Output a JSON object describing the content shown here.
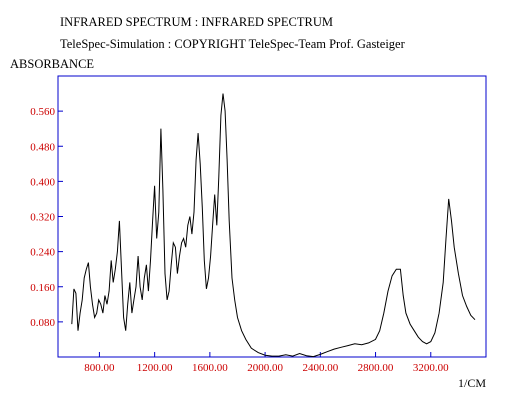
{
  "chart_data": {
    "type": "line",
    "title": "INFRARED SPECTRUM : INFRARED SPECTRUM",
    "subtitle": "TeleSpec-Simulation : COPYRIGHT TeleSpec-Team Prof. Gasteiger",
    "ylabel": "ABSORBANCE",
    "xlabel": "1/CM",
    "xlim": [
      500,
      3600
    ],
    "ylim": [
      0.0,
      0.64
    ],
    "x_ticks": [
      "800.00",
      "1200.00",
      "1600.00",
      "2000.00",
      "2400.00",
      "2800.00",
      "3200.00"
    ],
    "x_tick_values": [
      800,
      1200,
      1600,
      2000,
      2400,
      2800,
      3200
    ],
    "y_ticks": [
      "0.560",
      "0.480",
      "0.400",
      "0.320",
      "0.240",
      "0.160",
      "0.080"
    ],
    "y_tick_values": [
      0.56,
      0.48,
      0.4,
      0.32,
      0.24,
      0.16,
      0.08
    ],
    "grid": false,
    "line_color": "#000000",
    "frame_color": "#0000cc",
    "tick_label_color": "#cc0000",
    "series": [
      {
        "x": [
          600,
          615,
          630,
          645,
          660,
          675,
          690,
          705,
          720,
          735,
          750,
          765,
          780,
          795,
          810,
          825,
          840,
          855,
          870,
          885,
          900,
          915,
          930,
          945,
          960,
          975,
          990,
          1005,
          1020,
          1035,
          1050,
          1065,
          1080,
          1095,
          1110,
          1125,
          1140,
          1155,
          1170,
          1185,
          1200,
          1215,
          1230,
          1245,
          1260,
          1275,
          1290,
          1305,
          1320,
          1335,
          1350,
          1365,
          1380,
          1395,
          1410,
          1425,
          1440,
          1455,
          1470,
          1485,
          1500,
          1515,
          1530,
          1545,
          1560,
          1575,
          1590,
          1605,
          1620,
          1635,
          1650,
          1665,
          1680,
          1695,
          1710,
          1725,
          1740,
          1760,
          1780,
          1800,
          1830,
          1860,
          1900,
          1950,
          2000,
          2050,
          2100,
          2150,
          2200,
          2250,
          2300,
          2350,
          2400,
          2450,
          2500,
          2550,
          2600,
          2650,
          2700,
          2750,
          2800,
          2830,
          2860,
          2890,
          2920,
          2950,
          2980,
          3000,
          3020,
          3050,
          3080,
          3110,
          3140,
          3170,
          3200,
          3230,
          3260,
          3290,
          3310,
          3330,
          3350,
          3370,
          3400,
          3430,
          3460,
          3490,
          3520
        ],
        "y": [
          0.075,
          0.155,
          0.145,
          0.06,
          0.1,
          0.13,
          0.18,
          0.2,
          0.215,
          0.16,
          0.12,
          0.09,
          0.1,
          0.13,
          0.12,
          0.1,
          0.14,
          0.12,
          0.15,
          0.22,
          0.17,
          0.2,
          0.24,
          0.31,
          0.2,
          0.09,
          0.06,
          0.12,
          0.17,
          0.1,
          0.13,
          0.16,
          0.23,
          0.16,
          0.13,
          0.18,
          0.21,
          0.15,
          0.22,
          0.31,
          0.39,
          0.27,
          0.33,
          0.52,
          0.38,
          0.19,
          0.13,
          0.15,
          0.21,
          0.26,
          0.25,
          0.19,
          0.23,
          0.26,
          0.27,
          0.25,
          0.3,
          0.32,
          0.28,
          0.33,
          0.45,
          0.51,
          0.44,
          0.34,
          0.22,
          0.155,
          0.18,
          0.23,
          0.3,
          0.37,
          0.3,
          0.41,
          0.55,
          0.6,
          0.56,
          0.45,
          0.31,
          0.18,
          0.13,
          0.09,
          0.06,
          0.04,
          0.02,
          0.01,
          0.004,
          0.002,
          0.002,
          0.005,
          0.002,
          0.008,
          0.003,
          0.001,
          0.006,
          0.012,
          0.018,
          0.022,
          0.026,
          0.03,
          0.028,
          0.032,
          0.04,
          0.06,
          0.1,
          0.15,
          0.185,
          0.2,
          0.2,
          0.14,
          0.1,
          0.075,
          0.06,
          0.045,
          0.035,
          0.03,
          0.035,
          0.055,
          0.1,
          0.17,
          0.27,
          0.36,
          0.31,
          0.25,
          0.19,
          0.14,
          0.115,
          0.095,
          0.085
        ]
      }
    ]
  }
}
